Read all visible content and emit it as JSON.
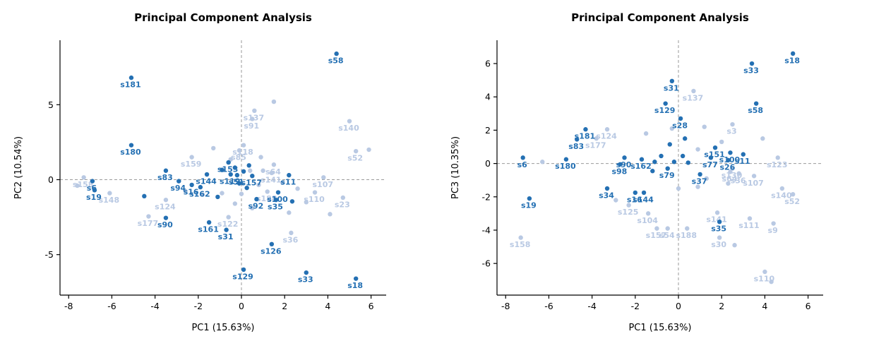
{
  "figure": {
    "background": "#ffffff",
    "point_color_primary": "#2470b3",
    "point_color_secondary": "#b9c9e3",
    "zero_line_color": "#9a9a9a",
    "axis_color": "#000000"
  },
  "chart_data": [
    {
      "type": "scatter",
      "title": "Principal Component Analysis",
      "xlabel": "PC1 (15.63%)",
      "ylabel": "PC2 (10.54%)",
      "xlim": [
        -8.4,
        6.7
      ],
      "ylim": [
        -7.7,
        9.3
      ],
      "xticks": [
        -8,
        -6,
        -4,
        -2,
        0,
        2,
        4,
        6
      ],
      "yticks": [
        -5,
        0,
        5
      ],
      "grid": "dashed-zero-lines",
      "legend": "none",
      "series": [
        {
          "name": "highlighted-samples",
          "color": "#2470b3",
          "points": [
            {
              "x": 4.4,
              "y": 8.4,
              "label": "s58"
            },
            {
              "x": -5.1,
              "y": 6.8,
              "label": "s181"
            },
            {
              "x": -5.1,
              "y": 2.3,
              "label": "s180"
            },
            {
              "x": -3.5,
              "y": 0.6,
              "label": "s83"
            },
            {
              "x": -2.9,
              "y": -0.1,
              "label": "s94"
            },
            {
              "x": -2.3,
              "y": -0.35,
              "label": "s16"
            },
            {
              "x": -1.9,
              "y": -0.5,
              "label": "s162"
            },
            {
              "x": -1.6,
              "y": 0.35,
              "label": "s144"
            },
            {
              "x": -0.6,
              "y": 1.15,
              "label": "s153"
            },
            {
              "x": -0.5,
              "y": 0.35,
              "label": "s119"
            },
            {
              "x": -0.2,
              "y": 0.3,
              "label": "s51"
            },
            {
              "x": 0.5,
              "y": 0.25,
              "label": "s157"
            },
            {
              "x": 2.2,
              "y": 0.3,
              "label": "s11"
            },
            {
              "x": 1.7,
              "y": -0.85,
              "label": "s100"
            },
            {
              "x": 1.6,
              "y": -1.35,
              "label": "s35"
            },
            {
              "x": 0.7,
              "y": -1.3,
              "label": "s92"
            },
            {
              "x": -6.9,
              "y": -0.1,
              "label": "s6"
            },
            {
              "x": -6.8,
              "y": -0.7,
              "label": "s19"
            },
            {
              "x": -3.5,
              "y": -2.55,
              "label": "s90"
            },
            {
              "x": -1.5,
              "y": -2.85,
              "label": "s161"
            },
            {
              "x": -0.7,
              "y": -3.35,
              "label": "s31"
            },
            {
              "x": 1.4,
              "y": -4.3,
              "label": "s126"
            },
            {
              "x": 0.1,
              "y": -6.0,
              "label": "s129"
            },
            {
              "x": 3.0,
              "y": -6.2,
              "label": "s33"
            },
            {
              "x": 5.3,
              "y": -6.6,
              "label": "s18"
            },
            {
              "x": -4.5,
              "y": -1.1,
              "label": ""
            },
            {
              "x": -0.9,
              "y": 0.65,
              "label": ""
            },
            {
              "x": -0.3,
              "y": 0.8,
              "label": ""
            },
            {
              "x": 0.1,
              "y": 0.55,
              "label": ""
            },
            {
              "x": 0.35,
              "y": 0.95,
              "label": ""
            },
            {
              "x": -0.1,
              "y": -0.25,
              "label": ""
            },
            {
              "x": 0.25,
              "y": -0.55,
              "label": ""
            },
            {
              "x": 2.35,
              "y": -1.45,
              "label": ""
            },
            {
              "x": -1.1,
              "y": -1.15,
              "label": ""
            }
          ]
        },
        {
          "name": "background-samples",
          "color": "#b9c9e3",
          "points": [
            {
              "x": -7.3,
              "y": 0.15,
              "label": "s158"
            },
            {
              "x": -6.1,
              "y": -0.9,
              "label": "s148"
            },
            {
              "x": -3.5,
              "y": -1.35,
              "label": "s124"
            },
            {
              "x": -4.3,
              "y": -2.45,
              "label": "s177"
            },
            {
              "x": -2.3,
              "y": 1.5,
              "label": "s159"
            },
            {
              "x": 0.1,
              "y": 2.3,
              "label": "s118"
            },
            {
              "x": -0.1,
              "y": 1.95,
              "label": "s85"
            },
            {
              "x": 0.6,
              "y": 4.6,
              "label": "s137"
            },
            {
              "x": 0.5,
              "y": 4.05,
              "label": "s91"
            },
            {
              "x": 5.0,
              "y": 3.9,
              "label": "s140"
            },
            {
              "x": 5.3,
              "y": 1.9,
              "label": "s52"
            },
            {
              "x": 1.5,
              "y": 1.0,
              "label": "s64"
            },
            {
              "x": 1.4,
              "y": 0.45,
              "label": "s141"
            },
            {
              "x": 3.8,
              "y": 0.15,
              "label": "s107"
            },
            {
              "x": 3.4,
              "y": -0.85,
              "label": "s110"
            },
            {
              "x": 4.7,
              "y": -1.2,
              "label": "s23"
            },
            {
              "x": 1.2,
              "y": -0.8,
              "label": "s188"
            },
            {
              "x": -0.6,
              "y": -2.5,
              "label": "s122"
            },
            {
              "x": 2.3,
              "y": -3.55,
              "label": "s36"
            },
            {
              "x": -7.6,
              "y": -0.4,
              "label": ""
            },
            {
              "x": 1.5,
              "y": 5.2,
              "label": ""
            },
            {
              "x": -1.3,
              "y": 2.1,
              "label": ""
            },
            {
              "x": 0.9,
              "y": 1.5,
              "label": ""
            },
            {
              "x": 1.0,
              "y": 0.6,
              "label": ""
            },
            {
              "x": 1.9,
              "y": -0.2,
              "label": ""
            },
            {
              "x": 2.6,
              "y": -0.6,
              "label": ""
            },
            {
              "x": 3.0,
              "y": -1.5,
              "label": ""
            },
            {
              "x": 2.2,
              "y": -2.2,
              "label": ""
            },
            {
              "x": 0.5,
              "y": -1.9,
              "label": ""
            },
            {
              "x": -0.3,
              "y": -1.6,
              "label": ""
            },
            {
              "x": -1.8,
              "y": -1.0,
              "label": ""
            },
            {
              "x": -2.6,
              "y": -0.75,
              "label": ""
            },
            {
              "x": -0.9,
              "y": -0.9,
              "label": ""
            },
            {
              "x": 5.9,
              "y": 2.0,
              "label": ""
            },
            {
              "x": 0.0,
              "y": -0.95,
              "label": ""
            },
            {
              "x": 0.8,
              "y": -0.35,
              "label": ""
            },
            {
              "x": -0.5,
              "y": 1.35,
              "label": ""
            },
            {
              "x": 0.4,
              "y": 0.6,
              "label": ""
            },
            {
              "x": 4.1,
              "y": -2.3,
              "label": ""
            }
          ]
        }
      ]
    },
    {
      "type": "scatter",
      "title": "Principal Component Analysis",
      "xlabel": "PC1 (15.63%)",
      "ylabel": "PC3 (10.35%)",
      "xlim": [
        -8.4,
        6.7
      ],
      "ylim": [
        -7.9,
        7.4
      ],
      "xticks": [
        -8,
        -6,
        -4,
        -2,
        0,
        2,
        4,
        6
      ],
      "yticks": [
        -6,
        -4,
        -2,
        0,
        2,
        4,
        6
      ],
      "grid": "dashed-zero-lines",
      "legend": "none",
      "series": [
        {
          "name": "highlighted-samples",
          "color": "#2470b3",
          "points": [
            {
              "x": 5.3,
              "y": 6.6,
              "label": "s18"
            },
            {
              "x": 3.4,
              "y": 6.0,
              "label": "s33"
            },
            {
              "x": -0.3,
              "y": 4.95,
              "label": "s31"
            },
            {
              "x": -0.6,
              "y": 3.6,
              "label": "s129"
            },
            {
              "x": 3.6,
              "y": 3.6,
              "label": "s58"
            },
            {
              "x": 0.1,
              "y": 2.7,
              "label": "s28"
            },
            {
              "x": -4.3,
              "y": 2.05,
              "label": "s181"
            },
            {
              "x": -4.7,
              "y": 1.45,
              "label": "s83"
            },
            {
              "x": 1.7,
              "y": 0.95,
              "label": "s151"
            },
            {
              "x": 2.4,
              "y": 0.65,
              "label": "s100"
            },
            {
              "x": 3.0,
              "y": 0.55,
              "label": "s11"
            },
            {
              "x": 1.5,
              "y": 0.35,
              "label": "s77"
            },
            {
              "x": 2.3,
              "y": 0.2,
              "label": "s26"
            },
            {
              "x": -5.2,
              "y": 0.25,
              "label": "s180"
            },
            {
              "x": -7.2,
              "y": 0.35,
              "label": "s6"
            },
            {
              "x": -2.5,
              "y": 0.35,
              "label": "s90"
            },
            {
              "x": -2.7,
              "y": -0.05,
              "label": "s98"
            },
            {
              "x": -1.7,
              "y": 0.25,
              "label": "s162"
            },
            {
              "x": -0.5,
              "y": -0.3,
              "label": "s79"
            },
            {
              "x": 1.0,
              "y": -0.65,
              "label": "s37"
            },
            {
              "x": -6.9,
              "y": -2.1,
              "label": "s19"
            },
            {
              "x": -3.3,
              "y": -1.5,
              "label": "s34"
            },
            {
              "x": -2.0,
              "y": -1.75,
              "label": "s16"
            },
            {
              "x": -1.6,
              "y": -1.75,
              "label": "s144"
            },
            {
              "x": 1.9,
              "y": -3.5,
              "label": "s35"
            },
            {
              "x": -1.1,
              "y": 0.1,
              "label": ""
            },
            {
              "x": -0.8,
              "y": 0.45,
              "label": ""
            },
            {
              "x": -0.2,
              "y": 0.1,
              "label": ""
            },
            {
              "x": 0.2,
              "y": 0.45,
              "label": ""
            },
            {
              "x": 0.45,
              "y": 0.05,
              "label": ""
            },
            {
              "x": -0.4,
              "y": 1.15,
              "label": ""
            },
            {
              "x": 0.3,
              "y": 1.5,
              "label": ""
            },
            {
              "x": -1.2,
              "y": -0.45,
              "label": ""
            }
          ]
        },
        {
          "name": "background-samples",
          "color": "#b9c9e3",
          "points": [
            {
              "x": 0.7,
              "y": 4.35,
              "label": "s137"
            },
            {
              "x": 2.5,
              "y": 2.35,
              "label": "s3"
            },
            {
              "x": -3.3,
              "y": 2.05,
              "label": "s124"
            },
            {
              "x": -3.8,
              "y": 1.5,
              "label": "s177"
            },
            {
              "x": 4.6,
              "y": 0.35,
              "label": "s123"
            },
            {
              "x": 2.5,
              "y": -0.3,
              "label": "s130"
            },
            {
              "x": 3.5,
              "y": -0.75,
              "label": "s107"
            },
            {
              "x": 4.8,
              "y": -1.5,
              "label": "s140"
            },
            {
              "x": 5.3,
              "y": -1.85,
              "label": "s52"
            },
            {
              "x": 2.4,
              "y": -0.5,
              "label": "s64"
            },
            {
              "x": 2.8,
              "y": -0.6,
              "label": "s36"
            },
            {
              "x": -2.3,
              "y": -2.5,
              "label": "s125"
            },
            {
              "x": -1.4,
              "y": -3.0,
              "label": "s104"
            },
            {
              "x": 1.8,
              "y": -2.95,
              "label": "s141"
            },
            {
              "x": 3.3,
              "y": -3.3,
              "label": "s111"
            },
            {
              "x": 4.4,
              "y": -3.6,
              "label": "s9"
            },
            {
              "x": -1.0,
              "y": -3.9,
              "label": "s157"
            },
            {
              "x": -0.5,
              "y": -3.9,
              "label": "s54"
            },
            {
              "x": 0.4,
              "y": -3.9,
              "label": "s188"
            },
            {
              "x": 1.9,
              "y": -4.45,
              "label": "s30"
            },
            {
              "x": -7.3,
              "y": -4.45,
              "label": "s158"
            },
            {
              "x": 4.0,
              "y": -6.5,
              "label": "s110"
            },
            {
              "x": -6.3,
              "y": 0.1,
              "label": ""
            },
            {
              "x": -2.9,
              "y": -2.2,
              "label": ""
            },
            {
              "x": 0.9,
              "y": -1.4,
              "label": ""
            },
            {
              "x": 2.3,
              "y": -1.2,
              "label": ""
            },
            {
              "x": 4.3,
              "y": -7.1,
              "label": ""
            },
            {
              "x": 2.6,
              "y": -4.9,
              "label": ""
            },
            {
              "x": 1.2,
              "y": 2.2,
              "label": ""
            },
            {
              "x": -1.5,
              "y": 1.8,
              "label": ""
            },
            {
              "x": 0.9,
              "y": 0.85,
              "label": ""
            },
            {
              "x": 3.9,
              "y": 1.5,
              "label": ""
            },
            {
              "x": 0.0,
              "y": -1.5,
              "label": ""
            },
            {
              "x": -0.3,
              "y": 2.1,
              "label": ""
            },
            {
              "x": 1.3,
              "y": -0.9,
              "label": ""
            },
            {
              "x": 2.0,
              "y": 1.3,
              "label": ""
            }
          ]
        }
      ]
    }
  ]
}
